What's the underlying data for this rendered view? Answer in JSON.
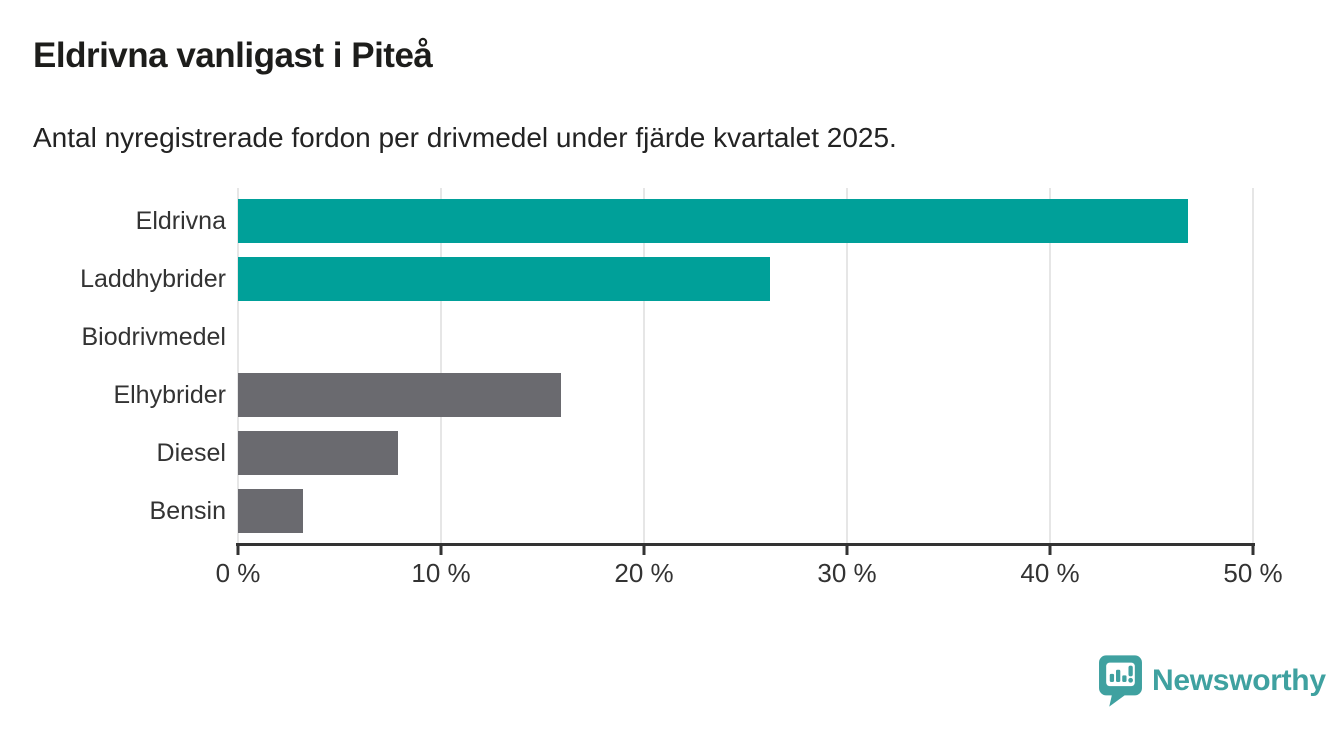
{
  "header": {
    "title": "Eldrivna vanligast i Piteå",
    "subtitle": "Antal nyregistrerade fordon per drivmedel under fjärde kvartalet 2025."
  },
  "chart_data": {
    "type": "bar",
    "orientation": "horizontal",
    "title": "Eldrivna vanligast i Piteå",
    "subtitle": "Antal nyregistrerade fordon per drivmedel under fjärde kvartalet 2025.",
    "categories": [
      "Eldrivna",
      "Laddhybrider",
      "Biodrivmedel",
      "Elhybrider",
      "Diesel",
      "Bensin"
    ],
    "values": [
      46.8,
      26.2,
      0,
      15.9,
      7.9,
      3.2
    ],
    "unit": "%",
    "bar_colors": [
      "#00a099",
      "#00a099",
      "#6a6a6f",
      "#6a6a6f",
      "#6a6a6f",
      "#6a6a6f"
    ],
    "xlim": [
      0,
      50
    ],
    "x_ticks": [
      0,
      10,
      20,
      30,
      40,
      50
    ],
    "x_tick_labels": [
      "0 %",
      "10 %",
      "20 %",
      "30 %",
      "40 %",
      "50 %"
    ],
    "grid": "vertical-gridlines-on",
    "legend": "none"
  },
  "colors": {
    "accent_teal": "#00a099",
    "neutral_gray": "#6a6a6f",
    "gridline": "#e6e6e6",
    "axis": "#333333",
    "text_dark": "#1d1d1b",
    "logo_teal": "#3fa1a0"
  },
  "footer": {
    "brand_name": "Newsworthy",
    "brand_icon": "newsworthy-bubble-chart-icon"
  }
}
